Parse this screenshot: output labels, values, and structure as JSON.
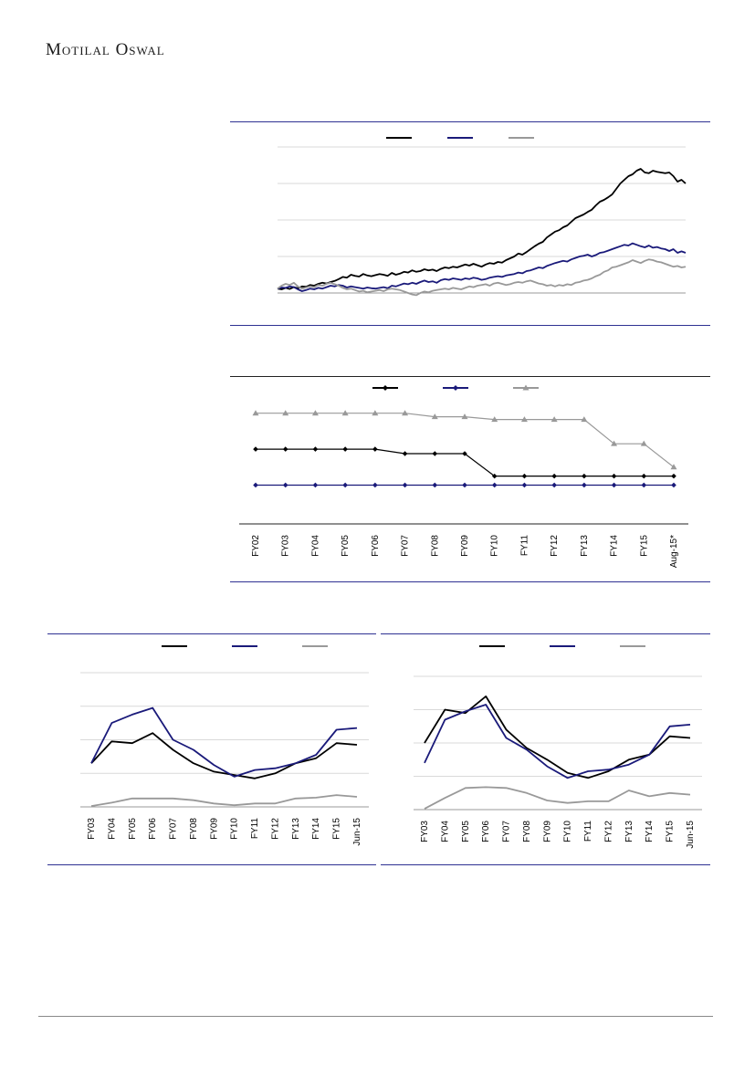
{
  "header": {
    "brand": "Motilal Oswal"
  },
  "colors": {
    "black": "#000000",
    "navy": "#1a1a7a",
    "grey": "#999999",
    "rule_navy": "#2e3192"
  },
  "chart_data": [
    {
      "type": "line",
      "series": [
        {
          "color": "#000000",
          "values": [
            0.12,
            0.1,
            0.14,
            0.11,
            0.16,
            0.13,
            0.18,
            0.17,
            0.22,
            0.2,
            0.25,
            0.28,
            0.26,
            0.3,
            0.33,
            0.38,
            0.44,
            0.42,
            0.5,
            0.47,
            0.45,
            0.52,
            0.48,
            0.46,
            0.49,
            0.52,
            0.5,
            0.47,
            0.55,
            0.5,
            0.53,
            0.58,
            0.56,
            0.62,
            0.58,
            0.6,
            0.65,
            0.62,
            0.64,
            0.6,
            0.66,
            0.7,
            0.68,
            0.72,
            0.7,
            0.74,
            0.78,
            0.75,
            0.8,
            0.76,
            0.72,
            0.78,
            0.82,
            0.8,
            0.85,
            0.83,
            0.9,
            0.95,
            1.0,
            1.08,
            1.05,
            1.12,
            1.2,
            1.28,
            1.35,
            1.4,
            1.52,
            1.6,
            1.68,
            1.72,
            1.8,
            1.85,
            1.95,
            2.05,
            2.1,
            2.15,
            2.22,
            2.28,
            2.4,
            2.5,
            2.55,
            2.62,
            2.7,
            2.85,
            3.0,
            3.1,
            3.2,
            3.25,
            3.35,
            3.4,
            3.3,
            3.28,
            3.35,
            3.32,
            3.3,
            3.28,
            3.3,
            3.2,
            3.05,
            3.1,
            3.0
          ]
        },
        {
          "color": "#1a1a7a",
          "values": [
            0.12,
            0.15,
            0.14,
            0.18,
            0.16,
            0.1,
            0.05,
            0.08,
            0.12,
            0.1,
            0.14,
            0.12,
            0.16,
            0.2,
            0.18,
            0.22,
            0.2,
            0.15,
            0.18,
            0.16,
            0.14,
            0.12,
            0.15,
            0.13,
            0.12,
            0.14,
            0.16,
            0.13,
            0.2,
            0.18,
            0.22,
            0.26,
            0.24,
            0.28,
            0.25,
            0.3,
            0.34,
            0.3,
            0.32,
            0.28,
            0.35,
            0.38,
            0.36,
            0.4,
            0.38,
            0.36,
            0.4,
            0.38,
            0.42,
            0.4,
            0.36,
            0.38,
            0.42,
            0.44,
            0.46,
            0.44,
            0.48,
            0.5,
            0.52,
            0.56,
            0.54,
            0.6,
            0.62,
            0.66,
            0.7,
            0.68,
            0.74,
            0.78,
            0.82,
            0.85,
            0.88,
            0.86,
            0.92,
            0.96,
            1.0,
            1.02,
            1.05,
            1.0,
            1.04,
            1.1,
            1.12,
            1.16,
            1.2,
            1.24,
            1.28,
            1.32,
            1.3,
            1.36,
            1.32,
            1.28,
            1.25,
            1.3,
            1.24,
            1.26,
            1.22,
            1.2,
            1.15,
            1.2,
            1.1,
            1.14,
            1.1
          ]
        },
        {
          "color": "#999999",
          "values": [
            0.12,
            0.2,
            0.25,
            0.22,
            0.28,
            0.18,
            0.12,
            0.15,
            0.18,
            0.16,
            0.22,
            0.2,
            0.25,
            0.28,
            0.24,
            0.2,
            0.14,
            0.1,
            0.12,
            0.08,
            0.04,
            0.06,
            0.02,
            0.04,
            0.06,
            0.08,
            0.05,
            0.1,
            0.12,
            0.1,
            0.08,
            0.04,
            0.0,
            -0.04,
            -0.06,
            0.0,
            0.04,
            0.02,
            0.06,
            0.08,
            0.1,
            0.12,
            0.1,
            0.14,
            0.12,
            0.1,
            0.14,
            0.18,
            0.16,
            0.2,
            0.22,
            0.24,
            0.2,
            0.26,
            0.28,
            0.25,
            0.22,
            0.24,
            0.28,
            0.3,
            0.28,
            0.32,
            0.34,
            0.3,
            0.26,
            0.24,
            0.2,
            0.22,
            0.18,
            0.22,
            0.2,
            0.24,
            0.22,
            0.28,
            0.3,
            0.34,
            0.36,
            0.4,
            0.46,
            0.5,
            0.58,
            0.62,
            0.7,
            0.72,
            0.76,
            0.8,
            0.84,
            0.9,
            0.86,
            0.82,
            0.88,
            0.92,
            0.9,
            0.86,
            0.84,
            0.8,
            0.76,
            0.72,
            0.74,
            0.7,
            0.72
          ]
        }
      ],
      "ylim": [
        0,
        4
      ]
    },
    {
      "type": "line",
      "categories": [
        "FY02",
        "FY03",
        "FY04",
        "FY05",
        "FY06",
        "FY07",
        "FY08",
        "FY09",
        "FY10",
        "FY11",
        "FY12",
        "FY13",
        "FY14",
        "FY15",
        "Aug-15*"
      ],
      "series": [
        {
          "color": "#000000",
          "marker": "diamond",
          "values": [
            20,
            20,
            20,
            20,
            20,
            19.5,
            19.5,
            19.5,
            17,
            17,
            17,
            17,
            17,
            17,
            17
          ]
        },
        {
          "color": "#1a1a7a",
          "marker": "diamond",
          "values": [
            16,
            16,
            16,
            16,
            16,
            16,
            16,
            16,
            16,
            16,
            16,
            16,
            16,
            16,
            16
          ]
        },
        {
          "color": "#999999",
          "marker": "triangle",
          "values": [
            24,
            24,
            24,
            24,
            24,
            24,
            23.6,
            23.6,
            23.3,
            23.3,
            23.3,
            23.3,
            20.6,
            20.6,
            18
          ]
        }
      ],
      "ylim": [
        13,
        26
      ]
    },
    {
      "type": "line",
      "categories": [
        "FY03",
        "FY04",
        "FY05",
        "FY06",
        "FY07",
        "FY08",
        "FY09",
        "FY10",
        "FY11",
        "FY12",
        "FY13",
        "FY14",
        "FY15",
        "Jun-15"
      ],
      "series": [
        {
          "color": "#000000",
          "values": [
            26,
            39,
            38,
            44,
            34,
            26,
            21,
            19,
            17,
            20,
            26,
            29,
            38,
            37
          ]
        },
        {
          "color": "#1a1a7a",
          "values": [
            26,
            50,
            55,
            59,
            40,
            34,
            25,
            18,
            22,
            23,
            26,
            31,
            46,
            47
          ]
        },
        {
          "color": "#999999",
          "values": [
            0.5,
            2.5,
            5,
            5,
            5,
            4,
            2,
            1,
            2,
            2,
            5,
            5.5,
            7,
            6
          ]
        }
      ],
      "ylim": [
        0,
        80
      ]
    },
    {
      "type": "line",
      "categories": [
        "FY03",
        "FY04",
        "FY05",
        "FY06",
        "FY07",
        "FY08",
        "FY09",
        "FY10",
        "FY11",
        "FY12",
        "FY13",
        "FY14",
        "FY15",
        "Jun-15"
      ],
      "series": [
        {
          "color": "#000000",
          "values": [
            40,
            60,
            58,
            68,
            48,
            37,
            30,
            22,
            19,
            23,
            30,
            33,
            44,
            43
          ]
        },
        {
          "color": "#1a1a7a",
          "values": [
            28,
            54,
            59,
            63,
            43,
            36,
            26,
            19,
            23,
            24,
            27,
            33,
            50,
            51
          ]
        },
        {
          "color": "#999999",
          "values": [
            0.5,
            7,
            13,
            13.5,
            13,
            10,
            5.5,
            4,
            5,
            5,
            11.5,
            8,
            10,
            9
          ]
        }
      ],
      "ylim": [
        0,
        80
      ]
    }
  ]
}
